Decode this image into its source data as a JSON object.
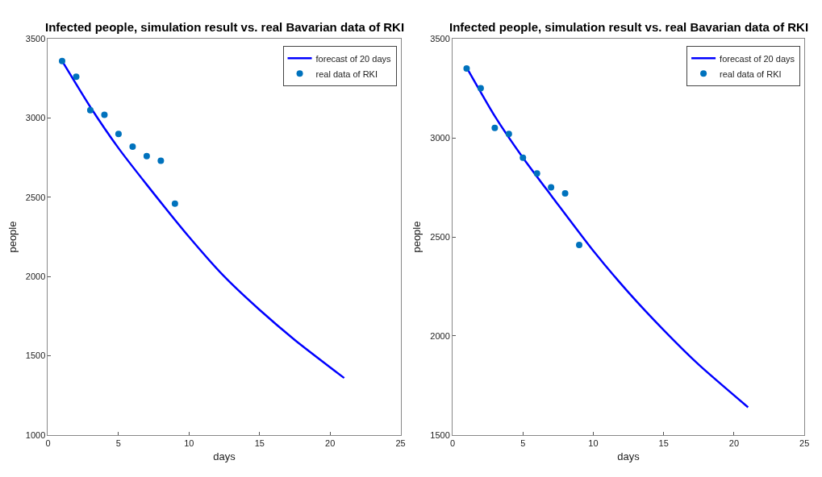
{
  "chart_data": [
    {
      "type": "line",
      "title": "Infected people, simulation result vs. real Bavarian data of RKI",
      "xlabel": "days",
      "ylabel": "people",
      "xlim": [
        0,
        25
      ],
      "xticks": [
        0,
        5,
        10,
        15,
        20,
        25
      ],
      "ylim": [
        1000,
        3500
      ],
      "yticks": [
        1000,
        1500,
        2000,
        2500,
        3000,
        3500
      ],
      "grid": false,
      "legend": "top right",
      "series": [
        {
          "name": "forecast of 20 days",
          "color": "#0000ff",
          "marker": "none",
          "line_style": "solid",
          "x": [
            1,
            3,
            5,
            7,
            10,
            12.5,
            15,
            17.5,
            21
          ],
          "values": [
            3360,
            3070,
            2810,
            2580,
            2250,
            2000,
            1790,
            1600,
            1360
          ]
        },
        {
          "name": "real data of RKI",
          "type": "scatter",
          "color": "#0072bd",
          "marker": "circle",
          "x": [
            1,
            2,
            3,
            4,
            5,
            6,
            7,
            8,
            9
          ],
          "values": [
            3360,
            3260,
            3050,
            3020,
            2900,
            2820,
            2760,
            2730,
            2460
          ]
        }
      ]
    },
    {
      "type": "line",
      "title": "Infected people, simulation result vs. real Bavarian data of RKI",
      "xlabel": "days",
      "ylabel": "people",
      "xlim": [
        0,
        25
      ],
      "xticks": [
        0,
        5,
        10,
        15,
        20,
        25
      ],
      "ylim": [
        1500,
        3500
      ],
      "yticks": [
        1500,
        2000,
        2500,
        3000,
        3500
      ],
      "grid": false,
      "legend": "top right",
      "series": [
        {
          "name": "forecast of 20 days",
          "color": "#0000ff",
          "marker": "none",
          "line_style": "solid",
          "x": [
            1,
            3,
            5,
            7,
            10,
            12.5,
            15,
            17.5,
            21
          ],
          "values": [
            3355,
            3110,
            2900,
            2710,
            2430,
            2220,
            2030,
            1855,
            1640
          ]
        },
        {
          "name": "real data of RKI",
          "type": "scatter",
          "color": "#0072bd",
          "marker": "circle",
          "x": [
            1,
            2,
            3,
            4,
            5,
            6,
            7,
            8,
            9
          ],
          "values": [
            3350,
            3250,
            3050,
            3020,
            2900,
            2820,
            2750,
            2720,
            2460
          ]
        }
      ]
    }
  ]
}
